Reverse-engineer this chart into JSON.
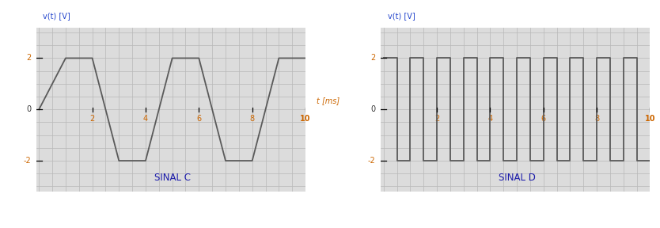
{
  "panel_bg": "#dcdcdc",
  "grid_color": "#b8b8b8",
  "signal_color": "#5a5a5a",
  "label_blue": "#2244cc",
  "label_orange": "#cc6600",
  "title_color": "#1a1aaa",
  "ylim": [
    -3.2,
    3.2
  ],
  "xlim": [
    -0.1,
    10.0
  ],
  "yticks_labeled": [
    -2,
    0,
    2
  ],
  "xticks_labeled": [
    2,
    4,
    6,
    8,
    10
  ],
  "ylabel": "v(t) [V]",
  "xlabel": "t [ms]",
  "sinal_c_label": "SINAL C",
  "sinal_d_label": "SINAL D",
  "t_c": [
    0,
    1,
    2,
    3,
    4,
    5,
    6,
    7,
    8,
    9,
    10
  ],
  "v_c": [
    0,
    2,
    2,
    -2,
    -2,
    2,
    2,
    -2,
    -2,
    2,
    2
  ],
  "square_high": 2,
  "square_low": -2,
  "square_half_period": 0.5
}
